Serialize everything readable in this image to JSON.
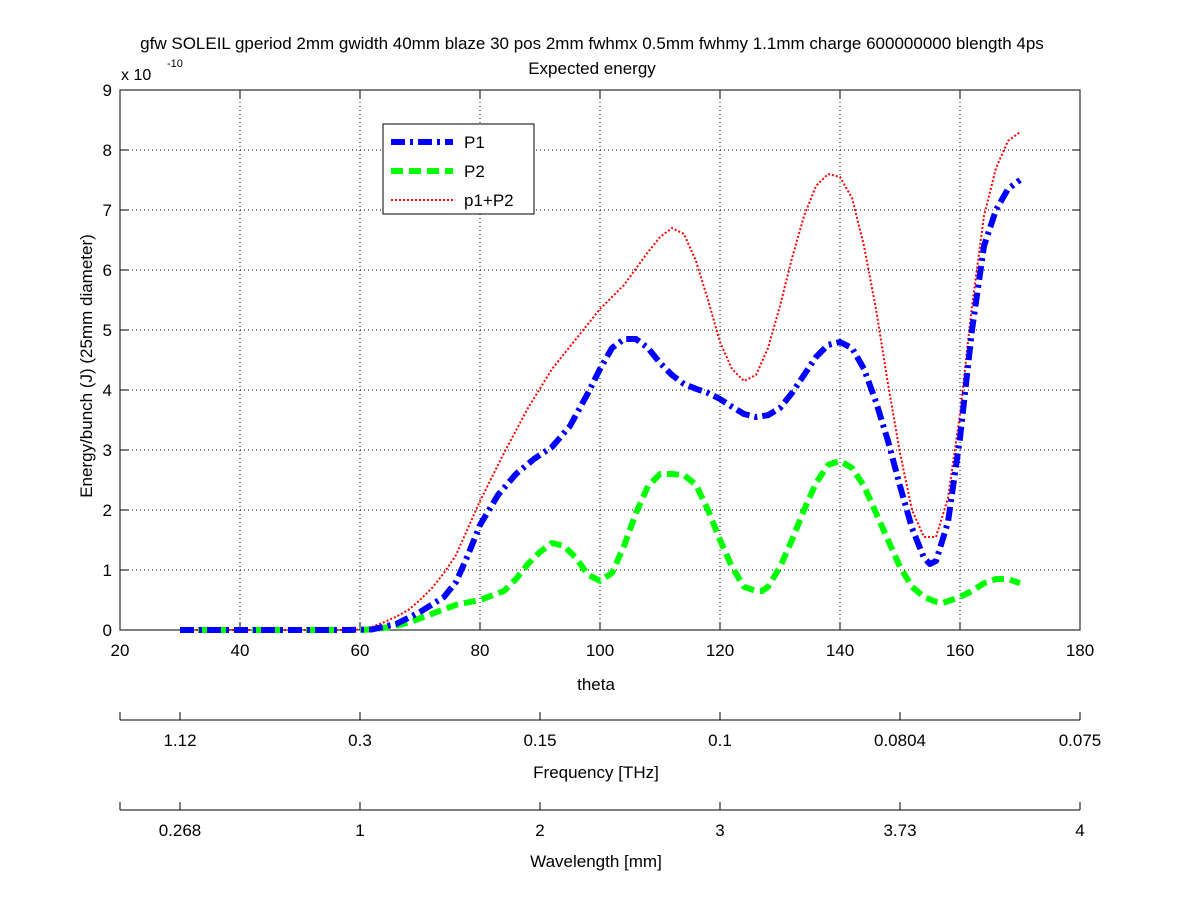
{
  "chart_data": {
    "type": "line",
    "title": "gfw SOLEIL gperiod 2mm gwidth 40mm blaze 30 pos 2mm fwhmx 0.5mm fwhmy 1.1mm charge 600000000 blength 4ps",
    "subtitle": "Expected energy",
    "xlabel": "theta",
    "ylabel": "Energy/bunch (J) (25mm diameter)",
    "y_scale_base": "x 10",
    "y_scale_exponent": "-10",
    "xlim": [
      20,
      180
    ],
    "ylim": [
      0,
      9
    ],
    "x_ticks": [
      "20",
      "40",
      "60",
      "80",
      "100",
      "120",
      "140",
      "160",
      "180"
    ],
    "y_ticks": [
      "0",
      "1",
      "2",
      "3",
      "4",
      "5",
      "6",
      "7",
      "8",
      "9"
    ],
    "grid": true,
    "legend_position": "top-left",
    "colors": {
      "p1": "#0000ff",
      "p2": "#00ff00",
      "sum": "#ff0000"
    },
    "series": [
      {
        "name": "P1",
        "style": "dash-dot",
        "x": [
          30,
          40,
          50,
          58,
          62,
          66,
          70,
          74,
          76,
          78,
          80,
          83,
          86,
          89,
          92,
          95,
          98,
          100,
          102,
          104,
          106,
          108,
          110,
          112,
          114,
          116,
          118,
          120,
          122,
          124,
          126,
          128,
          130,
          132,
          134,
          136,
          138,
          140,
          142,
          144,
          146,
          148,
          150,
          152,
          154,
          155,
          156,
          158,
          160,
          162,
          164,
          166,
          168,
          170
        ],
        "values": [
          0,
          0,
          0,
          0,
          0.01,
          0.1,
          0.3,
          0.55,
          0.8,
          1.25,
          1.75,
          2.25,
          2.6,
          2.85,
          3.05,
          3.4,
          3.95,
          4.35,
          4.7,
          4.85,
          4.85,
          4.7,
          4.45,
          4.25,
          4.1,
          4.02,
          3.95,
          3.85,
          3.72,
          3.6,
          3.55,
          3.58,
          3.7,
          3.95,
          4.25,
          4.55,
          4.75,
          4.8,
          4.7,
          4.35,
          3.8,
          3.15,
          2.4,
          1.7,
          1.2,
          1.1,
          1.15,
          1.8,
          3.2,
          5.0,
          6.4,
          7.0,
          7.35,
          7.5
        ]
      },
      {
        "name": "P2",
        "style": "dashed",
        "x": [
          30,
          40,
          50,
          60,
          62,
          65,
          68,
          72,
          76,
          80,
          84,
          86,
          88,
          90,
          92,
          94,
          96,
          98,
          100,
          102,
          104,
          106,
          108,
          110,
          112,
          114,
          116,
          118,
          120,
          122,
          124,
          126,
          127,
          128,
          130,
          132,
          134,
          136,
          138,
          140,
          142,
          144,
          146,
          148,
          150,
          152,
          154,
          156,
          157,
          158,
          160,
          162,
          164,
          166,
          168,
          170
        ],
        "values": [
          0,
          0,
          0,
          0,
          0.01,
          0.05,
          0.12,
          0.27,
          0.42,
          0.5,
          0.65,
          0.85,
          1.1,
          1.3,
          1.45,
          1.4,
          1.2,
          0.92,
          0.82,
          0.95,
          1.4,
          1.95,
          2.4,
          2.6,
          2.6,
          2.58,
          2.42,
          2.0,
          1.5,
          1.05,
          0.72,
          0.65,
          0.65,
          0.72,
          1.05,
          1.5,
          2.0,
          2.45,
          2.75,
          2.82,
          2.7,
          2.4,
          1.95,
          1.5,
          1.05,
          0.72,
          0.55,
          0.47,
          0.45,
          0.48,
          0.55,
          0.65,
          0.78,
          0.85,
          0.85,
          0.78
        ]
      },
      {
        "name": "p1+P2",
        "style": "dotted",
        "x": [
          30,
          40,
          50,
          58,
          60,
          62,
          64,
          66,
          68,
          70,
          72,
          74,
          76,
          78,
          80,
          84,
          88,
          92,
          96,
          100,
          104,
          108,
          110,
          112,
          114,
          116,
          118,
          120,
          122,
          124,
          126,
          128,
          130,
          132,
          134,
          136,
          138,
          140,
          142,
          144,
          146,
          148,
          150,
          152,
          154,
          156,
          158,
          160,
          162,
          164,
          166,
          168,
          170
        ],
        "values": [
          0,
          0,
          0,
          0,
          0.01,
          0.05,
          0.13,
          0.22,
          0.33,
          0.5,
          0.7,
          0.95,
          1.25,
          1.7,
          2.15,
          2.95,
          3.7,
          4.35,
          4.85,
          5.35,
          5.75,
          6.3,
          6.55,
          6.7,
          6.6,
          6.15,
          5.5,
          4.8,
          4.35,
          4.15,
          4.25,
          4.7,
          5.4,
          6.2,
          6.9,
          7.4,
          7.6,
          7.55,
          7.2,
          6.4,
          5.35,
          4.1,
          2.95,
          2.0,
          1.55,
          1.55,
          2.2,
          3.6,
          5.4,
          6.9,
          7.7,
          8.15,
          8.3
        ]
      }
    ],
    "frequency_axis": {
      "label": "Frequency [THz]",
      "ticks": [
        {
          "theta": 30,
          "label": "1.12"
        },
        {
          "theta": 60,
          "label": "0.3"
        },
        {
          "theta": 90,
          "label": "0.15"
        },
        {
          "theta": 120,
          "label": "0.1"
        },
        {
          "theta": 150,
          "label": "0.0804"
        },
        {
          "theta": 180,
          "label": "0.075"
        }
      ]
    },
    "wavelength_axis": {
      "label": "Wavelength [mm]",
      "ticks": [
        {
          "theta": 30,
          "label": "0.268"
        },
        {
          "theta": 60,
          "label": "1"
        },
        {
          "theta": 90,
          "label": "2"
        },
        {
          "theta": 120,
          "label": "3"
        },
        {
          "theta": 150,
          "label": "3.73"
        },
        {
          "theta": 180,
          "label": "4"
        }
      ]
    }
  }
}
